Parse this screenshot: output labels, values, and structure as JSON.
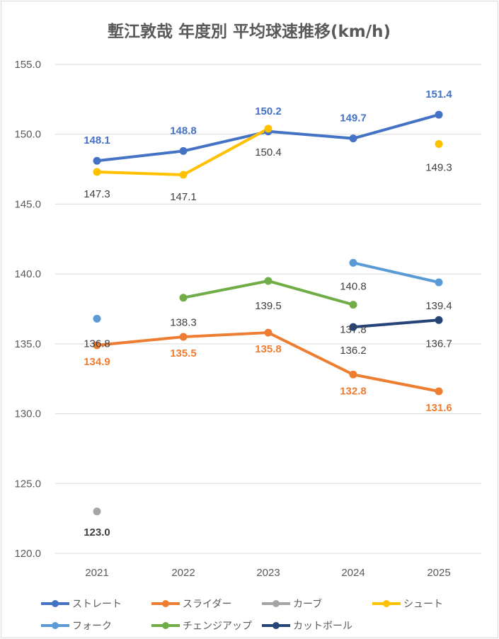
{
  "chart_data": {
    "type": "line",
    "title": "塹江敦哉 年度別 平均球速推移(km/h)",
    "categories": [
      "2021",
      "2022",
      "2023",
      "2024",
      "2025"
    ],
    "ylim": [
      120,
      155
    ],
    "yticks": [
      "120.0",
      "125.0",
      "130.0",
      "135.0",
      "140.0",
      "145.0",
      "150.0",
      "155.0"
    ],
    "grid": true,
    "legend_position": "bottom",
    "series": [
      {
        "name": "ストレート",
        "color": "#4472c4",
        "values": [
          148.1,
          148.8,
          150.2,
          149.7,
          151.4
        ],
        "labels": [
          "148.1",
          "148.8",
          "150.2",
          "149.7",
          "151.4"
        ],
        "label_color": "#4472c4",
        "label_bold": true
      },
      {
        "name": "スライダー",
        "color": "#ed7d31",
        "values": [
          134.9,
          135.5,
          135.8,
          132.8,
          131.6
        ],
        "labels": [
          "134.9",
          "135.5",
          "135.8",
          "132.8",
          "131.6"
        ],
        "label_color": "#ed7d31",
        "label_bold": true
      },
      {
        "name": "カーブ",
        "color": "#a5a5a5",
        "values": [
          123.0,
          null,
          null,
          null,
          null
        ],
        "labels": [
          "123.0",
          "",
          "",
          "",
          ""
        ],
        "label_color": "#404040",
        "label_bold": true
      },
      {
        "name": "シュート",
        "color": "#ffc000",
        "values": [
          147.3,
          147.1,
          150.4,
          null,
          149.3
        ],
        "labels": [
          "147.3",
          "147.1",
          "150.4",
          "",
          "149.3"
        ],
        "label_color": "#404040",
        "label_bold": false
      },
      {
        "name": "フォーク",
        "color": "#5b9bd5",
        "values": [
          136.8,
          null,
          null,
          140.8,
          139.4
        ],
        "labels": [
          "136.8",
          "",
          "",
          "140.8",
          "139.4"
        ],
        "label_color": "#404040",
        "label_bold": false
      },
      {
        "name": "チェンジアップ",
        "color": "#70ad47",
        "values": [
          null,
          138.3,
          139.5,
          137.8,
          null
        ],
        "labels": [
          "",
          "138.3",
          "139.5",
          "137.8",
          ""
        ],
        "label_color": "#404040",
        "label_bold": false
      },
      {
        "name": "カットボール",
        "color": "#264478",
        "values": [
          null,
          null,
          null,
          136.2,
          136.7
        ],
        "labels": [
          "",
          "",
          "",
          "136.2",
          "136.7"
        ],
        "label_color": "#404040",
        "label_bold": false
      }
    ]
  }
}
